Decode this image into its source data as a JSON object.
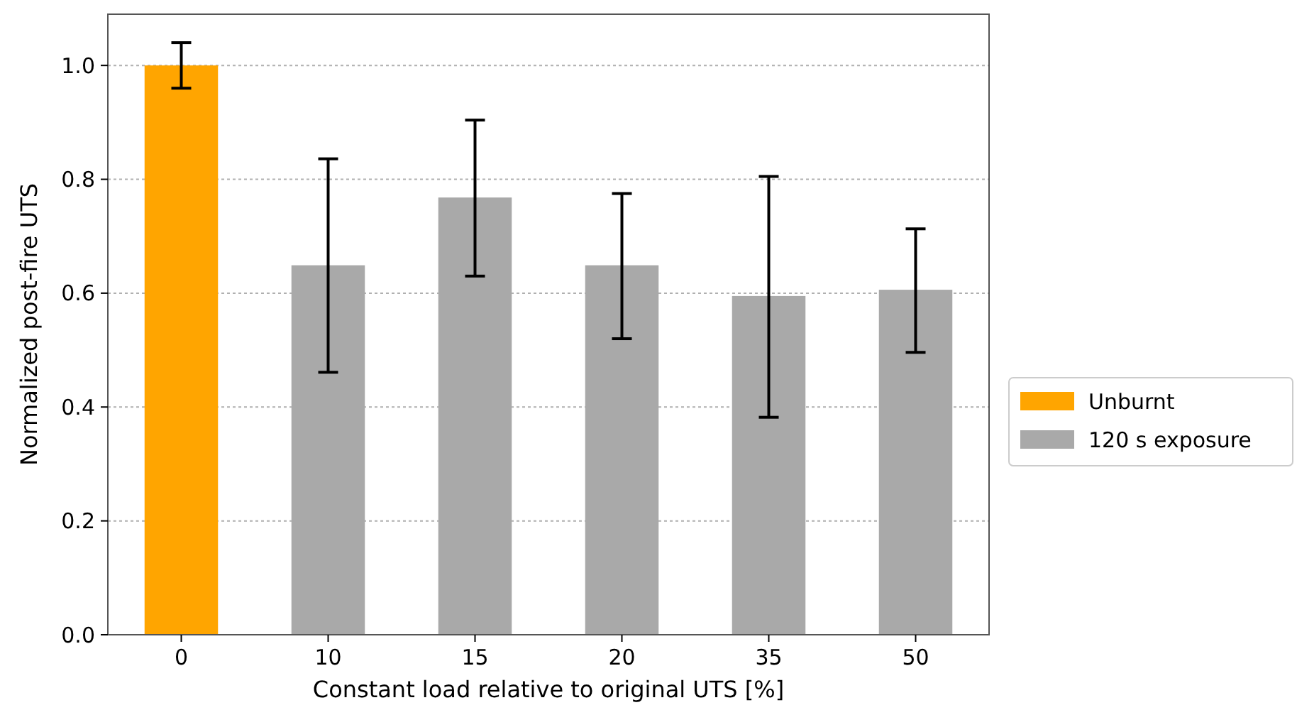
{
  "chart_data": {
    "type": "bar",
    "xlabel": "Constant load relative to original UTS [%]",
    "ylabel": "Normalized post-fire UTS",
    "categories": [
      "0",
      "10",
      "15",
      "20",
      "35",
      "50"
    ],
    "series": [
      {
        "name": "Unburnt",
        "color": "#ffa500",
        "values": [
          1.0,
          null,
          null,
          null,
          null,
          null
        ],
        "errors": [
          [
            0.96,
            1.04
          ],
          null,
          null,
          null,
          null,
          null
        ]
      },
      {
        "name": "120 s exposure",
        "color": "#a9a9a9",
        "values": [
          null,
          0.649,
          0.768,
          0.649,
          0.595,
          0.606
        ],
        "errors": [
          null,
          [
            0.461,
            0.836
          ],
          [
            0.63,
            0.904
          ],
          [
            0.52,
            0.775
          ],
          [
            0.382,
            0.805
          ],
          [
            0.496,
            0.713
          ]
        ]
      }
    ],
    "ylim": [
      0,
      1.09
    ],
    "yticks": [
      {
        "value": 0,
        "label": "0.0"
      },
      {
        "value": 0.2,
        "label": "0.2"
      },
      {
        "value": 0.4,
        "label": "0.4"
      },
      {
        "value": 0.6,
        "label": "0.6"
      },
      {
        "value": 0.8,
        "label": "0.8"
      },
      {
        "value": 1,
        "label": "1.0"
      }
    ],
    "grid": "y",
    "legend": "right"
  }
}
